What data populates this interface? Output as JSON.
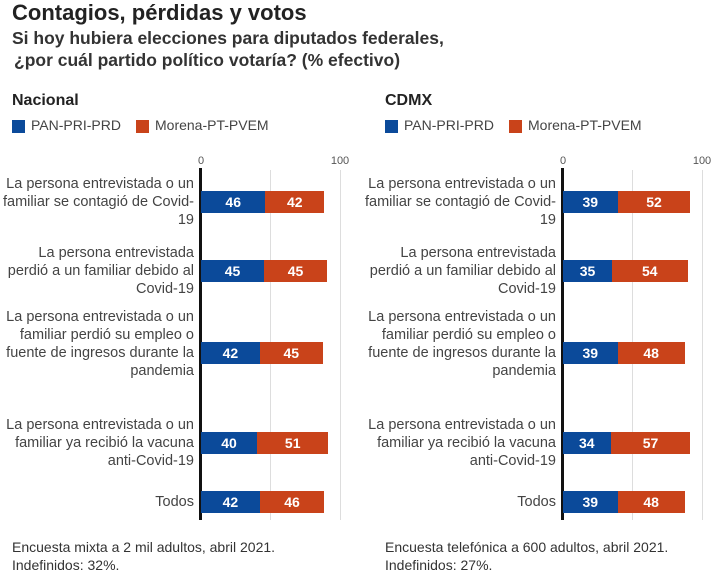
{
  "title": "Contagios, pérdidas y votos",
  "subtitle1": "Si hoy hubiera elecciones para diputados federales,",
  "subtitle2": "¿por cuál partido político votaría?  (% efectivo)",
  "colors": {
    "pan": "#0b4a9a",
    "morena": "#c9431a"
  },
  "chart_data": [
    {
      "type": "bar",
      "stacked": true,
      "orientation": "horizontal",
      "title": "Nacional",
      "xlim": [
        0,
        100
      ],
      "ticks": [
        "0",
        "100"
      ],
      "legend": [
        "PAN-PRI-PRD",
        "Morena-PT-PVEM"
      ],
      "categories": [
        "La persona entrevistada o un familiar se contagió de Covid-19",
        "La persona entrevistada perdió a un familiar debido al Covid-19",
        "La persona entrevistada o un familiar perdió su empleo o fuente de ingresos durante la pandemia",
        "La persona entrevistada o un familiar ya recibió la vacuna anti-Covid-19",
        "Todos"
      ],
      "series": [
        {
          "name": "PAN-PRI-PRD",
          "values": [
            46,
            45,
            42,
            40,
            42
          ]
        },
        {
          "name": "Morena-PT-PVEM",
          "values": [
            42,
            45,
            45,
            51,
            46
          ]
        }
      ],
      "note1": "Encuesta mixta a 2 mil adultos, abril 2021.",
      "note2": "Indefinidos: 32%."
    },
    {
      "type": "bar",
      "stacked": true,
      "orientation": "horizontal",
      "title": "CDMX",
      "xlim": [
        0,
        100
      ],
      "ticks": [
        "0",
        "100"
      ],
      "legend": [
        "PAN-PRI-PRD",
        "Morena-PT-PVEM"
      ],
      "categories": [
        "La persona entrevistada o un familiar se contagió de Covid-19",
        "La persona entrevistada perdió a un familiar debido al Covid-19",
        "La persona entrevistada o un familiar perdió su empleo o fuente de ingresos durante la pandemia",
        "La persona entrevistada o un familiar ya recibió la vacuna anti-Covid-19",
        "Todos"
      ],
      "series": [
        {
          "name": "PAN-PRI-PRD",
          "values": [
            39,
            35,
            39,
            34,
            39
          ]
        },
        {
          "name": "Morena-PT-PVEM",
          "values": [
            52,
            54,
            48,
            57,
            48
          ]
        }
      ],
      "note1": "Encuesta telefónica a 600 adultos, abril 2021.",
      "note2": "Indefinidos: 27%."
    }
  ]
}
